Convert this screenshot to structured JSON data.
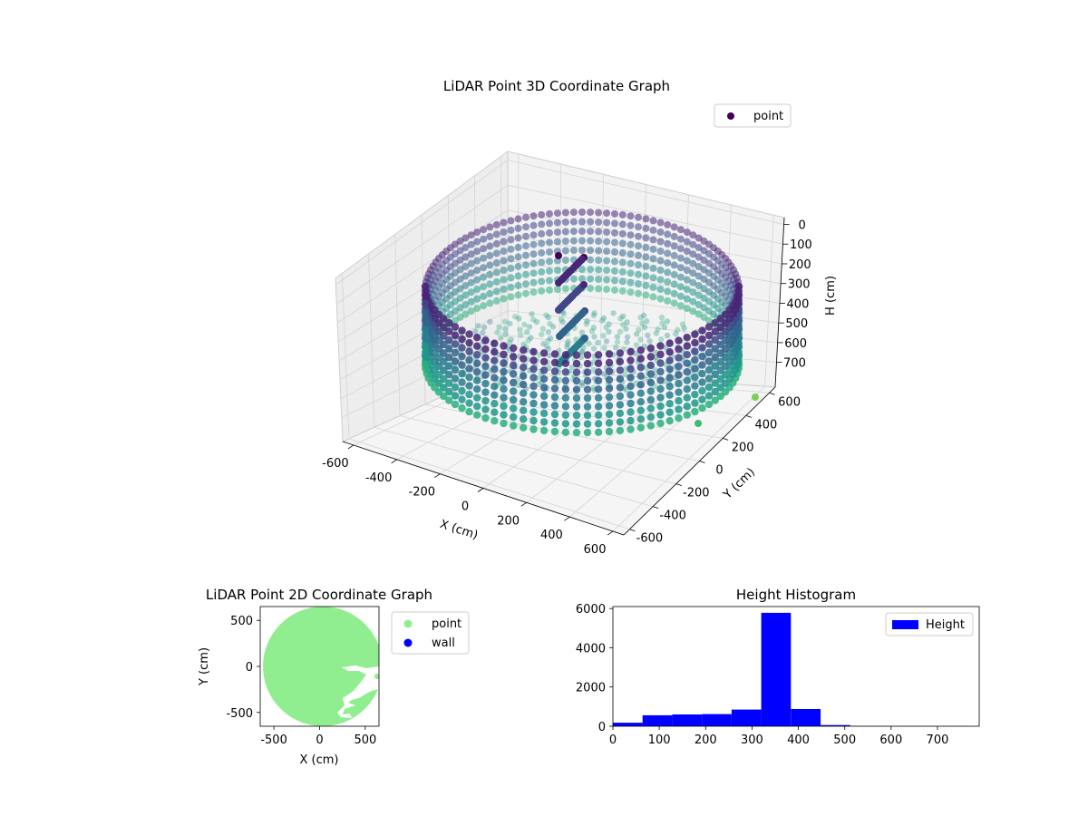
{
  "chart_data": [
    {
      "type": "scatter",
      "title": "LiDAR Point 3D Coordinate Graph",
      "xlabel": "X (cm)",
      "ylabel": "Y (cm)",
      "zlabel": "H (cm)",
      "xlim": [
        -650,
        650
      ],
      "ylim": [
        -650,
        650
      ],
      "zlim": [
        800,
        0
      ],
      "x_ticks": [
        -600,
        -400,
        -200,
        0,
        200,
        400,
        600
      ],
      "y_ticks": [
        -600,
        -400,
        -200,
        0,
        200,
        400,
        600
      ],
      "z_ticks": [
        0,
        100,
        200,
        300,
        400,
        500,
        600,
        700
      ],
      "grid": true,
      "legend": {
        "position": "upper-right",
        "entries": [
          "point"
        ]
      },
      "colormap": "viridis",
      "outlier_points": [
        {
          "x": 620,
          "y": 560,
          "h": 780
        },
        {
          "x": 640,
          "y": 250,
          "h": 760
        }
      ],
      "series": [
        {
          "name": "point"
        }
      ]
    },
    {
      "type": "scatter",
      "title": "LiDAR Point 2D Coordinate Graph",
      "xlabel": "X (cm)",
      "ylabel": "Y (cm)",
      "xlim": [
        -650,
        650
      ],
      "ylim": [
        -650,
        650
      ],
      "x_ticks": [
        -500,
        0,
        500
      ],
      "y_ticks": [
        -500,
        0,
        500
      ],
      "legend": {
        "position": "outside-right",
        "entries": [
          "point",
          "wall"
        ]
      },
      "series": [
        {
          "name": "point",
          "color": "#90ee90"
        },
        {
          "name": "wall",
          "color": "#0000ff"
        }
      ]
    },
    {
      "type": "bar",
      "title": "Height Histogram",
      "xlim": [
        0,
        790
      ],
      "ylim": [
        0,
        6100
      ],
      "x_ticks": [
        0,
        100,
        200,
        300,
        400,
        500,
        600,
        700
      ],
      "y_ticks": [
        0,
        2000,
        4000,
        6000
      ],
      "legend": {
        "position": "upper-right",
        "entries": [
          "Height"
        ]
      },
      "bin_width": 64,
      "bins": [
        {
          "x0": 0,
          "count": 180
        },
        {
          "x0": 64,
          "count": 560
        },
        {
          "x0": 128,
          "count": 600
        },
        {
          "x0": 192,
          "count": 620
        },
        {
          "x0": 256,
          "count": 850
        },
        {
          "x0": 320,
          "count": 5780
        },
        {
          "x0": 384,
          "count": 880
        },
        {
          "x0": 448,
          "count": 60
        },
        {
          "x0": 512,
          "count": 10
        },
        {
          "x0": 576,
          "count": 5
        },
        {
          "x0": 640,
          "count": 5
        },
        {
          "x0": 704,
          "count": 5
        }
      ],
      "series": [
        {
          "name": "Height",
          "color": "#0000ff"
        }
      ]
    }
  ]
}
